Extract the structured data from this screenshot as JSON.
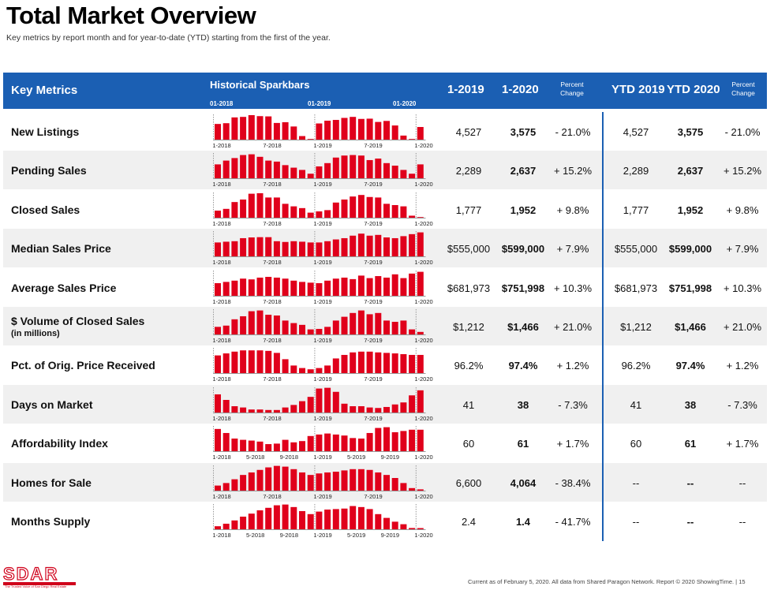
{
  "title": "Total Market Overview",
  "subtitle": "Key metrics by report month and for year-to-date (YTD) starting from the first of the year.",
  "header": {
    "key_metrics": "Key Metrics",
    "sparkbars": "Historical Sparkbars",
    "spark_months": [
      "01-2018",
      "01-2019",
      "01-2020"
    ],
    "col_1_2019": "1-2019",
    "col_1_2020": "1-2020",
    "percent_change": "Percent Change",
    "ytd_2019": "YTD 2019",
    "ytd_2020": "YTD 2020"
  },
  "colors": {
    "header_blue": "#1b5fb3",
    "bar_red": "#e0001b",
    "alt_row": "#f0f0f0"
  },
  "rows": [
    {
      "label": "New Listings",
      "sub": "",
      "v2019": "4,527",
      "v2020": "3,575",
      "pct": "- 21.0%",
      "ytd2019": "4,527",
      "ytd2020": "3,575",
      "ytdpct": "- 21.0%",
      "ticks": [
        "1-2018",
        "7-2018",
        "1-2019",
        "7-2019",
        "1-2020"
      ],
      "bars": [
        0.62,
        0.65,
        0.88,
        0.9,
        0.97,
        0.93,
        0.92,
        0.66,
        0.69,
        0.52,
        0.14,
        0.0,
        0.64,
        0.75,
        0.78,
        0.86,
        0.9,
        0.82,
        0.83,
        0.7,
        0.74,
        0.56,
        0.16,
        0.0,
        0.5
      ]
    },
    {
      "label": "Pending Sales",
      "sub": "",
      "v2019": "2,289",
      "v2020": "2,637",
      "pct": "+ 15.2%",
      "ytd2019": "2,289",
      "ytd2020": "2,637",
      "ytdpct": "+ 15.2%",
      "ticks": [
        "1-2018",
        "7-2018",
        "1-2019",
        "7-2019",
        "1-2020"
      ],
      "bars": [
        0.55,
        0.7,
        0.8,
        0.92,
        0.95,
        0.85,
        0.7,
        0.66,
        0.52,
        0.42,
        0.33,
        0.18,
        0.47,
        0.6,
        0.82,
        0.9,
        0.92,
        0.9,
        0.72,
        0.78,
        0.6,
        0.5,
        0.33,
        0.18,
        0.55
      ]
    },
    {
      "label": "Closed Sales",
      "sub": "",
      "v2019": "1,777",
      "v2020": "1,952",
      "pct": "+ 9.8%",
      "ytd2019": "1,777",
      "ytd2020": "1,952",
      "ytdpct": "+ 9.8%",
      "ticks": [
        "1-2018",
        "7-2018",
        "1-2019",
        "7-2019",
        "1-2020"
      ],
      "bars": [
        0.28,
        0.35,
        0.62,
        0.72,
        0.95,
        0.97,
        0.8,
        0.8,
        0.55,
        0.45,
        0.38,
        0.2,
        0.25,
        0.3,
        0.6,
        0.72,
        0.84,
        0.9,
        0.82,
        0.8,
        0.55,
        0.5,
        0.45,
        0.08,
        0.0
      ]
    },
    {
      "label": "Median Sales Price",
      "sub": "",
      "v2019": "$555,000",
      "v2020": "$599,000",
      "pct": "+ 7.9%",
      "ytd2019": "$555,000",
      "ytd2020": "$599,000",
      "ytdpct": "+ 7.9%",
      "ticks": [
        "1-2018",
        "7-2018",
        "1-2019",
        "7-2019",
        "1-2020"
      ],
      "bars": [
        0.55,
        0.58,
        0.6,
        0.72,
        0.75,
        0.76,
        0.76,
        0.6,
        0.57,
        0.6,
        0.58,
        0.55,
        0.55,
        0.6,
        0.67,
        0.72,
        0.82,
        0.9,
        0.82,
        0.85,
        0.75,
        0.72,
        0.8,
        0.88,
        0.95
      ]
    },
    {
      "label": "Average Sales Price",
      "sub": "",
      "v2019": "$681,973",
      "v2020": "$751,998",
      "pct": "+ 10.3%",
      "ytd2019": "$681,973",
      "ytd2020": "$751,998",
      "ytdpct": "+ 10.3%",
      "ticks": [
        "1-2018",
        "7-2018",
        "1-2019",
        "7-2019",
        "1-2020"
      ],
      "bars": [
        0.5,
        0.55,
        0.6,
        0.68,
        0.65,
        0.72,
        0.75,
        0.72,
        0.68,
        0.6,
        0.55,
        0.52,
        0.5,
        0.6,
        0.68,
        0.72,
        0.66,
        0.8,
        0.7,
        0.78,
        0.72,
        0.85,
        0.7,
        0.88,
        0.95
      ]
    },
    {
      "label": "$ Volume of Closed Sales",
      "sub": "(in millions)",
      "v2019": "$1,212",
      "v2020": "$1,466",
      "pct": "+ 21.0%",
      "ytd2019": "$1,212",
      "ytd2020": "$1,466",
      "ytdpct": "+ 21.0%",
      "ticks": [
        "1-2018",
        "7-2018",
        "1-2019",
        "7-2019",
        "1-2020"
      ],
      "bars": [
        0.3,
        0.35,
        0.6,
        0.72,
        0.92,
        0.95,
        0.78,
        0.75,
        0.55,
        0.45,
        0.38,
        0.2,
        0.22,
        0.3,
        0.55,
        0.7,
        0.85,
        0.95,
        0.8,
        0.85,
        0.55,
        0.5,
        0.55,
        0.2,
        0.1
      ]
    },
    {
      "label": "Pct. of Orig. Price Received",
      "sub": "",
      "v2019": "96.2%",
      "v2020": "97.4%",
      "pct": "+ 1.2%",
      "ytd2019": "96.2%",
      "ytd2020": "97.4%",
      "ytdpct": "+ 1.2%",
      "ticks": [
        "1-2018",
        "7-2018",
        "1-2019",
        "7-2019",
        "1-2020"
      ],
      "bars": [
        0.7,
        0.78,
        0.85,
        0.9,
        0.9,
        0.9,
        0.88,
        0.8,
        0.55,
        0.3,
        0.2,
        0.15,
        0.2,
        0.3,
        0.58,
        0.72,
        0.82,
        0.85,
        0.85,
        0.82,
        0.8,
        0.78,
        0.75,
        0.72,
        0.72
      ]
    },
    {
      "label": "Days on Market",
      "sub": "",
      "v2019": "41",
      "v2020": "38",
      "pct": "- 7.3%",
      "ytd2019": "41",
      "ytd2020": "38",
      "ytdpct": "- 7.3%",
      "ticks": [
        "1-2018",
        "7-2018",
        "1-2019",
        "7-2019",
        "1-2020"
      ],
      "bars": [
        0.72,
        0.5,
        0.25,
        0.2,
        0.12,
        0.12,
        0.1,
        0.1,
        0.2,
        0.3,
        0.45,
        0.62,
        0.95,
        0.98,
        0.82,
        0.35,
        0.25,
        0.25,
        0.2,
        0.18,
        0.22,
        0.32,
        0.4,
        0.68,
        0.88
      ]
    },
    {
      "label": "Affordability Index",
      "sub": "",
      "v2019": "60",
      "v2020": "61",
      "pct": "+ 1.7%",
      "ytd2019": "60",
      "ytd2020": "61",
      "ytdpct": "+ 1.7%",
      "ticks": [
        "1-2018",
        "5-2018",
        "9-2018",
        "1-2019",
        "5-2019",
        "9-2019",
        "1-2020"
      ],
      "bars": [
        0.88,
        0.72,
        0.5,
        0.45,
        0.42,
        0.38,
        0.28,
        0.3,
        0.45,
        0.35,
        0.4,
        0.6,
        0.66,
        0.7,
        0.66,
        0.62,
        0.52,
        0.5,
        0.72,
        0.92,
        0.95,
        0.75,
        0.8,
        0.85,
        0.85
      ]
    },
    {
      "label": "Homes for Sale",
      "sub": "",
      "v2019": "6,600",
      "v2020": "4,064",
      "pct": "- 38.4%",
      "ytd2019": "--",
      "ytd2020": "--",
      "ytdpct": "--",
      "ticks": [
        "1-2018",
        "7-2018",
        "1-2019",
        "7-2019",
        "1-2020"
      ],
      "bars": [
        0.2,
        0.3,
        0.45,
        0.62,
        0.72,
        0.82,
        0.92,
        0.98,
        0.95,
        0.85,
        0.72,
        0.62,
        0.68,
        0.72,
        0.75,
        0.8,
        0.85,
        0.85,
        0.82,
        0.72,
        0.62,
        0.5,
        0.3,
        0.1,
        0.05
      ]
    },
    {
      "label": "Months Supply",
      "sub": "",
      "v2019": "2.4",
      "v2020": "1.4",
      "pct": "- 41.7%",
      "ytd2019": "--",
      "ytd2020": "--",
      "ytdpct": "--",
      "ticks": [
        "1-2018",
        "5-2018",
        "9-2018",
        "1-2019",
        "5-2019",
        "9-2019",
        "1-2020"
      ],
      "bars": [
        0.12,
        0.22,
        0.35,
        0.5,
        0.62,
        0.75,
        0.85,
        0.95,
        0.98,
        0.88,
        0.72,
        0.6,
        0.7,
        0.78,
        0.8,
        0.82,
        0.92,
        0.88,
        0.8,
        0.6,
        0.45,
        0.3,
        0.2,
        0.05,
        0.02
      ]
    }
  ],
  "footer": "Current as of February 5, 2020. All data from Shared Paragon Network. Report © 2020 ShowingTime.  |  15",
  "logo": {
    "text": "SDAR",
    "tagline": "The Trusted Voice of San Diego Real Estate"
  }
}
